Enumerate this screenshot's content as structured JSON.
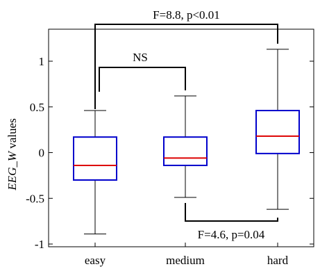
{
  "chart_data": {
    "type": "box",
    "categories": [
      "easy",
      "medium",
      "hard"
    ],
    "ylabel_main": "EEG_W",
    "ylabel_suffix": " values",
    "ylim": [
      -1.03,
      1.35
    ],
    "yticks": [
      -1,
      -0.5,
      0,
      0.5,
      1
    ],
    "ytick_labels": [
      "-1",
      "-0.5",
      "0",
      "0.5",
      "1"
    ],
    "boxes": [
      {
        "category": "easy",
        "whisker_low": -0.89,
        "q1": -0.3,
        "median": -0.14,
        "q3": 0.17,
        "whisker_high": 0.46
      },
      {
        "category": "medium",
        "whisker_low": -0.49,
        "q1": -0.14,
        "median": -0.06,
        "q3": 0.17,
        "whisker_high": 0.62
      },
      {
        "category": "hard",
        "whisker_low": -0.62,
        "q1": -0.01,
        "median": 0.18,
        "q3": 0.46,
        "whisker_high": 1.13
      }
    ],
    "box_color": "#0000cc",
    "median_color": "#dd0000",
    "whisker_color": "#000000",
    "annotations": [
      {
        "text": "F=8.8, p<0.01",
        "from": "easy",
        "to": "hard",
        "side": "top"
      },
      {
        "text": "NS",
        "from": "easy",
        "to": "medium",
        "side": "top"
      },
      {
        "text": "F=4.6, p=0.04",
        "from": "medium",
        "to": "hard",
        "side": "bottom"
      }
    ],
    "grid": false
  }
}
